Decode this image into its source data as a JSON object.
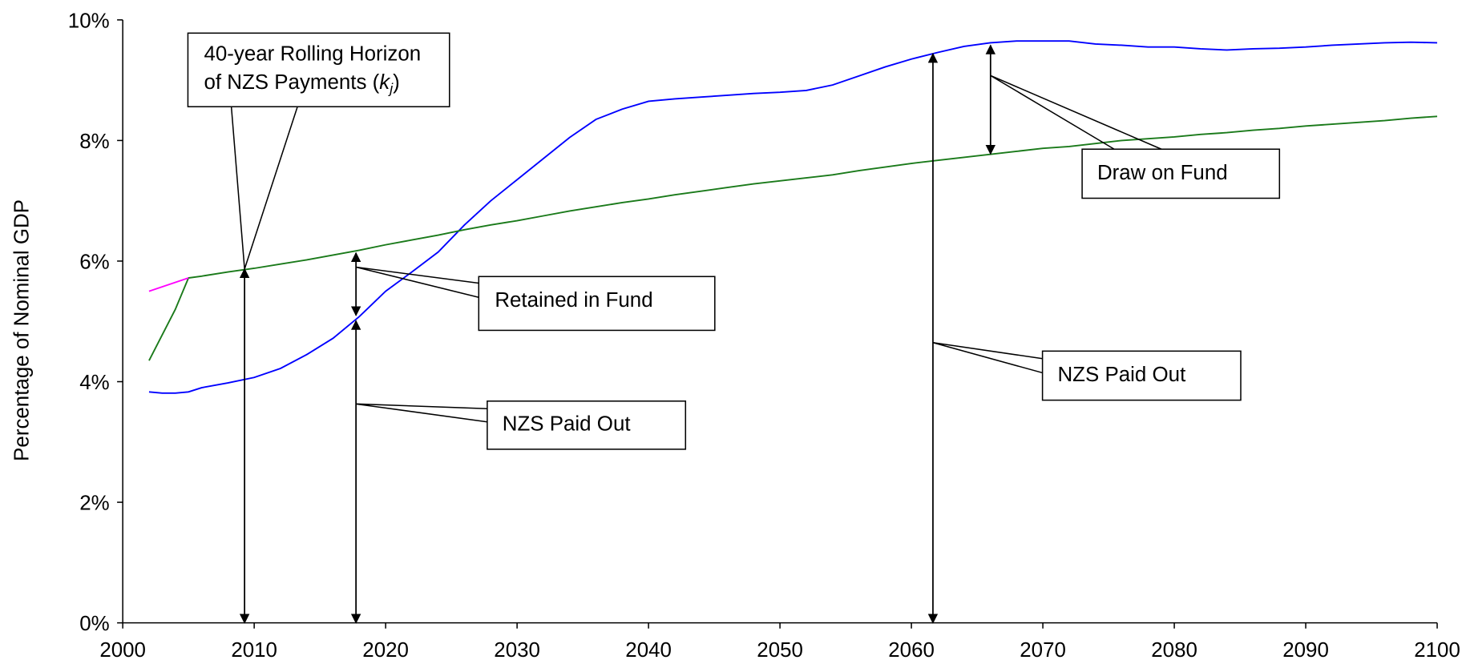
{
  "chart_data": {
    "type": "line",
    "y_label": "Percentage of Nominal GDP",
    "xlim": [
      2000,
      2100
    ],
    "xticks": [
      2000,
      2010,
      2020,
      2030,
      2040,
      2050,
      2060,
      2070,
      2080,
      2090,
      2100
    ],
    "ylim": [
      0,
      10
    ],
    "yticks": [
      {
        "value": 0,
        "label": "0%"
      },
      {
        "value": 2,
        "label": "2%"
      },
      {
        "value": 4,
        "label": "4%"
      },
      {
        "value": 6,
        "label": "6%"
      },
      {
        "value": 8,
        "label": "8%"
      },
      {
        "value": 10,
        "label": "10%"
      }
    ],
    "grid": false,
    "series": [
      {
        "color": "#0000ff",
        "x": [
          2002,
          2003,
          2004,
          2005,
          2006,
          2008,
          2010,
          2012,
          2014,
          2016,
          2018,
          2020,
          2022,
          2024,
          2026,
          2028,
          2030,
          2032,
          2034,
          2036,
          2038,
          2040,
          2042,
          2044,
          2046,
          2048,
          2050,
          2052,
          2054,
          2056,
          2058,
          2060,
          2062,
          2064,
          2066,
          2068,
          2072,
          2074,
          2076,
          2078,
          2080,
          2082,
          2084,
          2086,
          2088,
          2090,
          2092,
          2094,
          2096,
          2098,
          2100
        ],
        "values": [
          3.83,
          3.81,
          3.81,
          3.83,
          3.9,
          3.98,
          4.07,
          4.22,
          4.45,
          4.72,
          5.08,
          5.5,
          5.82,
          6.15,
          6.6,
          7.0,
          7.35,
          7.7,
          8.05,
          8.35,
          8.52,
          8.65,
          8.69,
          8.72,
          8.75,
          8.78,
          8.8,
          8.83,
          8.92,
          9.07,
          9.22,
          9.35,
          9.46,
          9.56,
          9.62,
          9.65,
          9.65,
          9.6,
          9.58,
          9.55,
          9.55,
          9.52,
          9.5,
          9.52,
          9.53,
          9.55,
          9.58,
          9.6,
          9.62,
          9.63,
          9.62
        ]
      },
      {
        "color": "#1a7a1a",
        "x": [
          2002,
          2004,
          2005,
          2006,
          2008,
          2010,
          2012,
          2014,
          2016,
          2018,
          2020,
          2022,
          2024,
          2026,
          2028,
          2030,
          2032,
          2034,
          2036,
          2038,
          2040,
          2042,
          2044,
          2046,
          2048,
          2050,
          2052,
          2054,
          2056,
          2058,
          2060,
          2062,
          2064,
          2066,
          2068,
          2070,
          2072,
          2074,
          2076,
          2078,
          2080,
          2082,
          2084,
          2086,
          2088,
          2090,
          2092,
          2094,
          2096,
          2098,
          2100
        ],
        "values": [
          4.35,
          5.2,
          5.72,
          5.75,
          5.82,
          5.88,
          5.95,
          6.02,
          6.1,
          6.18,
          6.27,
          6.35,
          6.43,
          6.52,
          6.6,
          6.67,
          6.75,
          6.83,
          6.9,
          6.97,
          7.03,
          7.1,
          7.16,
          7.22,
          7.28,
          7.33,
          7.38,
          7.43,
          7.5,
          7.56,
          7.62,
          7.67,
          7.72,
          7.77,
          7.82,
          7.87,
          7.9,
          7.95,
          8.0,
          8.03,
          8.06,
          8.1,
          8.13,
          8.17,
          8.2,
          8.24,
          8.27,
          8.3,
          8.33,
          8.37,
          8.4
        ]
      },
      {
        "color": "#ff00ff",
        "x": [
          2002,
          2005
        ],
        "values": [
          5.5,
          5.72
        ]
      }
    ],
    "annotations": {
      "horizon": {
        "line1": "40-year Rolling Horizon",
        "line2": "of NZS Payments (",
        "symbol": "k",
        "subscript": "j",
        "close": ")"
      },
      "retained": "Retained in Fund",
      "paid_out_1": "NZS Paid Out",
      "paid_out_2": "NZS Paid Out",
      "draw": "Draw on Fund"
    }
  }
}
